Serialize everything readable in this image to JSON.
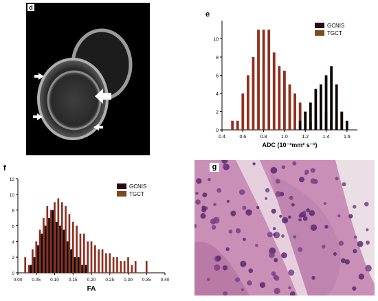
{
  "panels": {
    "d": {
      "letter": "d"
    },
    "e": {
      "letter": "e"
    },
    "f": {
      "letter": "f"
    },
    "g": {
      "letter": "g"
    }
  },
  "colors": {
    "gcnis": "#0d0606",
    "tgct": "#8f2f1e",
    "tgct_legend": "#7b4a1d",
    "gcnis_legend": "#2a0a0a",
    "arrow": "#ffffff",
    "histology_bg": "#c98fb6"
  },
  "chart_data": [
    {
      "panel": "e",
      "type": "bar",
      "xlabel": "ADC (10⁻³mm² s⁻¹)",
      "ylabel": "",
      "xlim": [
        0.4,
        1.7
      ],
      "ylim": [
        0,
        12
      ],
      "x_ticks": [
        "0.4",
        "0.6",
        "0.8",
        "1.0",
        "1.2",
        "1.4",
        "1.6"
      ],
      "y_ticks": [
        "0",
        "2",
        "4",
        "6",
        "8",
        "10"
      ],
      "legend": {
        "position": "top-right",
        "entries": [
          "GCNIS",
          "TGCT"
        ]
      },
      "bin_width": 0.025,
      "series": [
        {
          "name": "TGCT",
          "x": [
            0.5,
            0.55,
            0.6,
            0.65,
            0.7,
            0.75,
            0.8,
            0.85,
            0.9,
            0.95,
            1.0,
            1.05,
            1.1,
            1.15,
            1.2,
            1.25,
            1.3,
            1.35,
            1.4,
            1.45,
            1.5,
            1.55
          ],
          "values": [
            1,
            1,
            4,
            6,
            8,
            11,
            11,
            11,
            8.5,
            7,
            6.5,
            5,
            4,
            3,
            2,
            1,
            1,
            1,
            2,
            1,
            1,
            2
          ]
        },
        {
          "name": "GCNIS",
          "x": [
            1.15,
            1.2,
            1.25,
            1.3,
            1.35,
            1.4,
            1.45,
            1.5,
            1.55,
            1.6
          ],
          "values": [
            1,
            2,
            3,
            4.5,
            5,
            6,
            7,
            5,
            2,
            1
          ]
        }
      ]
    },
    {
      "panel": "f",
      "type": "bar",
      "xlabel": "FA",
      "ylabel": "",
      "xlim": [
        0,
        0.4
      ],
      "ylim": [
        0,
        12
      ],
      "x_ticks": [
        "0.00",
        "0.05",
        "0.10",
        "0.15",
        "0.20",
        "0.25",
        "0.30",
        "0.35",
        "0.40"
      ],
      "y_ticks": [
        "0",
        "2",
        "4",
        "6",
        "8",
        "10",
        "12"
      ],
      "legend": {
        "position": "top-right",
        "entries": [
          "GCNIS",
          "TGCT"
        ]
      },
      "bin_width": 0.005,
      "series": [
        {
          "name": "TGCT",
          "x": [
            0.02,
            0.03,
            0.04,
            0.05,
            0.06,
            0.07,
            0.08,
            0.09,
            0.1,
            0.11,
            0.12,
            0.13,
            0.14,
            0.15,
            0.16,
            0.17,
            0.18,
            0.19,
            0.2,
            0.21,
            0.22,
            0.23,
            0.24,
            0.25,
            0.26,
            0.27,
            0.28,
            0.29,
            0.3,
            0.31,
            0.32,
            0.35
          ],
          "values": [
            2,
            1,
            3,
            4,
            5.5,
            7,
            8.5,
            8,
            9,
            9.5,
            9,
            8.5,
            7.5,
            6.5,
            6,
            5,
            5,
            4,
            4,
            3.5,
            3,
            3,
            2.5,
            2.5,
            2,
            2,
            1.5,
            1.5,
            2,
            1,
            1.5,
            1.5
          ]
        },
        {
          "name": "GCNIS",
          "x": [
            0.035,
            0.045,
            0.055,
            0.065,
            0.075,
            0.085,
            0.095,
            0.105,
            0.115,
            0.125,
            0.135,
            0.145,
            0.155,
            0.165,
            0.175,
            0.185
          ],
          "values": [
            1,
            2,
            3.5,
            5,
            6,
            7,
            8,
            6.5,
            6,
            5.5,
            4,
            3,
            2,
            2,
            1,
            1
          ]
        }
      ]
    }
  ]
}
